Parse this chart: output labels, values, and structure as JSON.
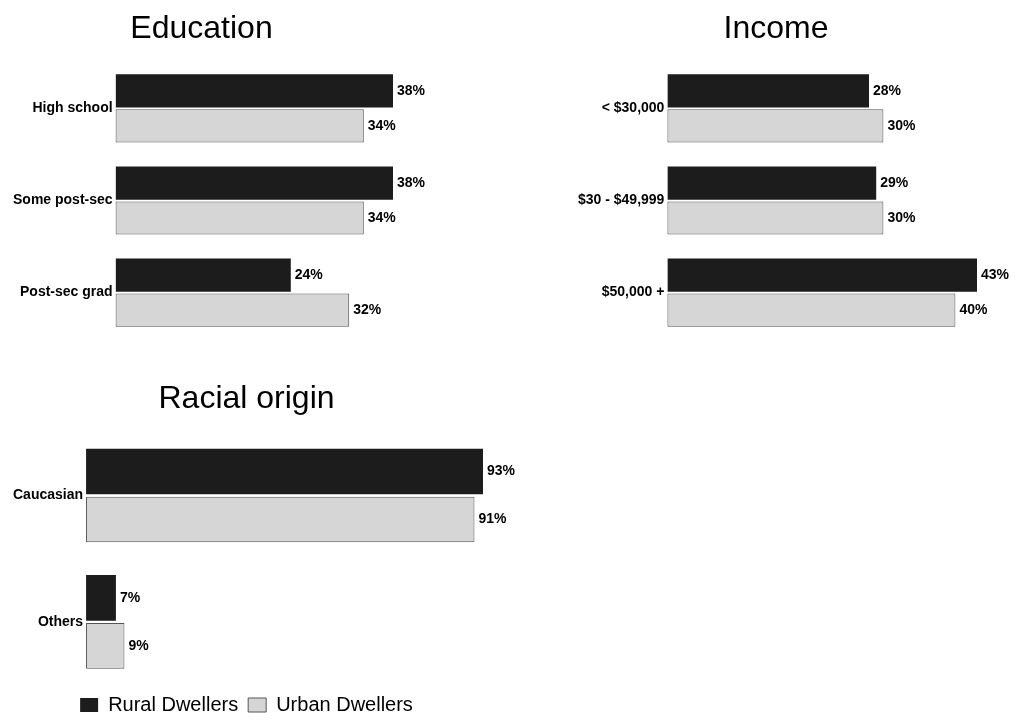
{
  "chart_data": [
    {
      "type": "bar",
      "orientation": "horizontal",
      "title": "Education",
      "categories": [
        "High school",
        "Some post-sec",
        "Post-sec grad"
      ],
      "tick_labels": "y",
      "legend": false,
      "series": [
        {
          "color": "#1c1c1c",
          "values": [
            38,
            38,
            24
          ],
          "value_labels": [
            "38%",
            "38%",
            "24%"
          ]
        },
        {
          "color": "#d6d6d6",
          "values": [
            34,
            34,
            32
          ],
          "value_labels": [
            "34%",
            "34%",
            "32%"
          ]
        }
      ]
    },
    {
      "type": "bar",
      "orientation": "horizontal",
      "title": "Income",
      "categories": [
        "< $30,000",
        "$30 - $49,999",
        "$50,000 +"
      ],
      "tick_labels": "y",
      "legend": false,
      "series": [
        {
          "color": "#1c1c1c",
          "values": [
            28,
            29,
            43
          ],
          "value_labels": [
            "28%",
            "29%",
            "43%"
          ]
        },
        {
          "color": "#d6d6d6",
          "values": [
            30,
            30,
            40
          ],
          "value_labels": [
            "30%",
            "30%",
            "40%"
          ]
        }
      ]
    },
    {
      "type": "bar",
      "orientation": "horizontal",
      "title": "Racial origin",
      "categories": [
        "Caucasian",
        "Others"
      ],
      "tick_labels": "y",
      "legend": "bottom",
      "series": [
        {
          "name": "Rural Dwellers",
          "color": "#1c1c1c",
          "values": [
            93,
            7
          ],
          "value_labels": [
            "93%",
            "7%"
          ]
        },
        {
          "name": "Urban Dwellers",
          "color": "#d6d6d6",
          "values": [
            91,
            9
          ],
          "value_labels": [
            "91%",
            "9%"
          ]
        }
      ]
    }
  ]
}
